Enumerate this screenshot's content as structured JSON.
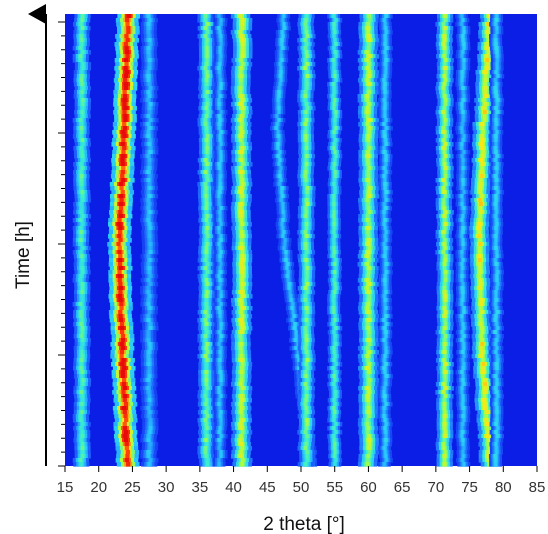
{
  "chart_data": {
    "type": "heatmap",
    "title": "",
    "xlabel": "2 theta [°]",
    "ylabel": "Time [h]",
    "xlim": [
      15,
      85
    ],
    "x_ticks": [
      15,
      20,
      25,
      30,
      35,
      40,
      45,
      50,
      55,
      60,
      65,
      70,
      75,
      80,
      85
    ],
    "y_ticks_labeled": false,
    "y_direction": "increasing upward (arrow)",
    "colormap": [
      "#0a1ee6",
      "#1e64ff",
      "#28c8ff",
      "#3cf0c8",
      "#aaff3c",
      "#ffe614",
      "#ff3c0a",
      "#e60a0a"
    ],
    "peaks": [
      {
        "position": 17.5,
        "intensity": 0.45,
        "width": 0.5
      },
      {
        "position": 24.3,
        "intensity": 1.0,
        "width": 0.7,
        "shift": [
          0,
          -0.5,
          -1.2,
          -0.8,
          0
        ]
      },
      {
        "position": 27.5,
        "intensity": 0.28,
        "width": 0.5
      },
      {
        "position": 36.0,
        "intensity": 0.5,
        "width": 0.5
      },
      {
        "position": 38.0,
        "intensity": 0.3,
        "width": 0.4
      },
      {
        "position": 41.2,
        "intensity": 0.62,
        "width": 0.6
      },
      {
        "position": 47.5,
        "intensity": 0.3,
        "width": 0.4,
        "shift": [
          0,
          -1,
          0,
          2,
          4
        ]
      },
      {
        "position": 50.8,
        "intensity": 0.52,
        "width": 0.5
      },
      {
        "position": 55.0,
        "intensity": 0.45,
        "width": 0.4
      },
      {
        "position": 60.0,
        "intensity": 0.6,
        "width": 0.6
      },
      {
        "position": 62.5,
        "intensity": 0.32,
        "width": 0.4
      },
      {
        "position": 71.3,
        "intensity": 0.6,
        "width": 0.5
      },
      {
        "position": 74.0,
        "intensity": 0.3,
        "width": 0.4
      },
      {
        "position": 76.5,
        "intensity": 0.68,
        "width": 0.6,
        "shift": [
          1.5,
          0.5,
          0,
          0.3,
          1.5
        ]
      },
      {
        "position": 79.0,
        "intensity": 0.32,
        "width": 0.4
      }
    ]
  }
}
